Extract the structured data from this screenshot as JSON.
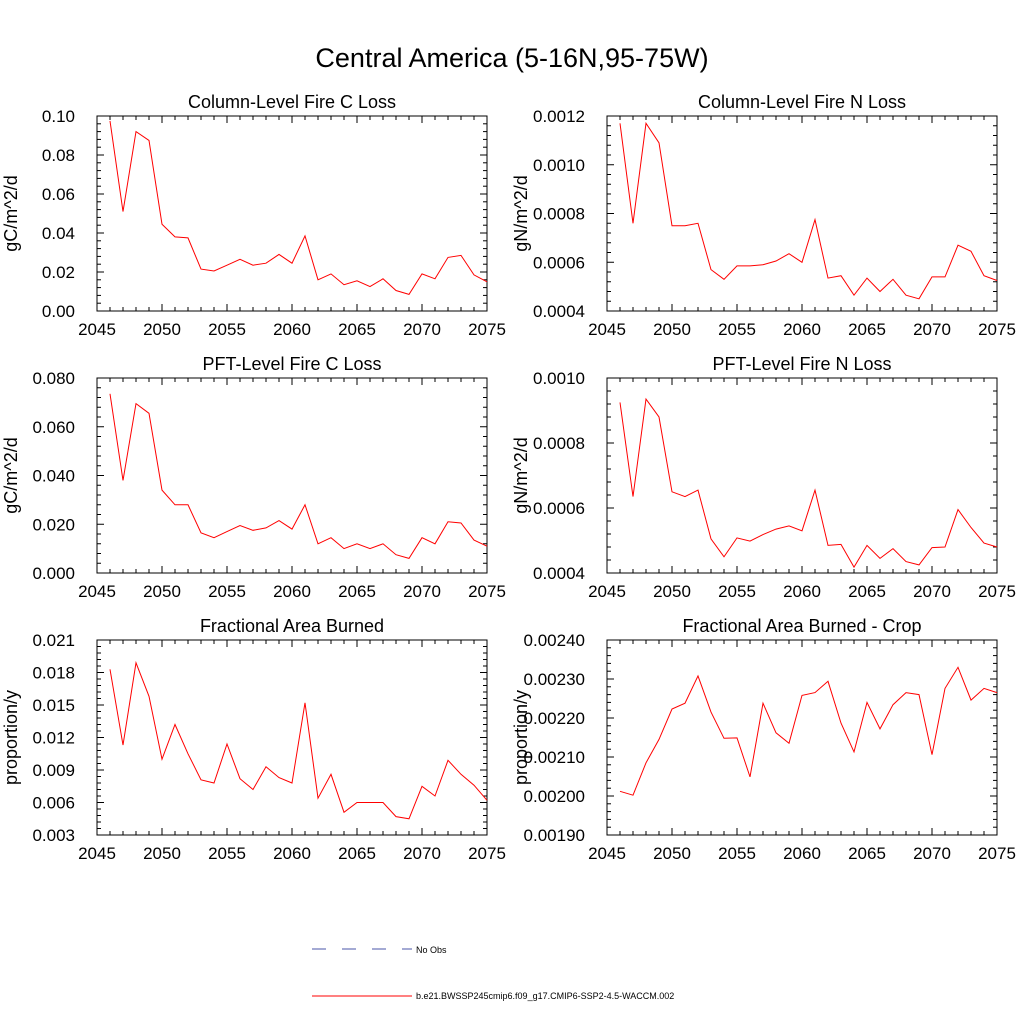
{
  "figure": {
    "title": "Central America (5-16N,95-75W)",
    "legend": [
      {
        "label": "No Obs",
        "color": "#4a55a8",
        "style": "dashed"
      },
      {
        "label": "b.e21.BWSSP245cmip6.f09_g17.CMIP6-SSP2-4.5-WACCM.002",
        "color": "#ff0000",
        "style": "solid"
      }
    ]
  },
  "chart_data": [
    {
      "type": "line",
      "title": "Column-Level Fire C Loss",
      "xlabel": "",
      "ylabel": "gC/m^2/d",
      "xlim": [
        2045,
        2075
      ],
      "ylim": [
        0.0,
        0.1
      ],
      "xticks": [
        "2045",
        "2050",
        "2055",
        "2060",
        "2065",
        "2070",
        "2075"
      ],
      "yticks": [
        "0.00",
        "0.02",
        "0.04",
        "0.06",
        "0.08",
        "0.10"
      ],
      "x": [
        2046,
        2047,
        2048,
        2049,
        2050,
        2051,
        2052,
        2053,
        2054,
        2055,
        2056,
        2057,
        2058,
        2059,
        2060,
        2061,
        2062,
        2063,
        2064,
        2065,
        2066,
        2067,
        2068,
        2069,
        2070,
        2071,
        2072,
        2073,
        2074,
        2075
      ],
      "series": [
        {
          "values": [
            0.0975,
            0.051,
            0.092,
            0.0875,
            0.0445,
            0.038,
            0.0375,
            0.0215,
            0.0205,
            0.0235,
            0.0265,
            0.0235,
            0.0245,
            0.029,
            0.0245,
            0.0385,
            0.016,
            0.019,
            0.0135,
            0.0155,
            0.0125,
            0.0165,
            0.0105,
            0.0085,
            0.019,
            0.0165,
            0.0275,
            0.0285,
            0.0185,
            0.015
          ],
          "color": "#ff0000"
        }
      ]
    },
    {
      "type": "line",
      "title": "Column-Level Fire N Loss",
      "xlabel": "",
      "ylabel": "gN/m^2/d",
      "xlim": [
        2045,
        2075
      ],
      "ylim": [
        0.0004,
        0.0012
      ],
      "xticks": [
        "2045",
        "2050",
        "2055",
        "2060",
        "2065",
        "2070",
        "2075"
      ],
      "yticks": [
        "0.0004",
        "0.0006",
        "0.0008",
        "0.0010",
        "0.0012"
      ],
      "x": [
        2046,
        2047,
        2048,
        2049,
        2050,
        2051,
        2052,
        2053,
        2054,
        2055,
        2056,
        2057,
        2058,
        2059,
        2060,
        2061,
        2062,
        2063,
        2064,
        2065,
        2066,
        2067,
        2068,
        2069,
        2070,
        2071,
        2072,
        2073,
        2074,
        2075
      ],
      "series": [
        {
          "values": [
            0.00117,
            0.00076,
            0.00117,
            0.00109,
            0.00075,
            0.00075,
            0.00076,
            0.00057,
            0.00053,
            0.000585,
            0.000585,
            0.00059,
            0.000605,
            0.000635,
            0.0006,
            0.000775,
            0.000535,
            0.000545,
            0.000465,
            0.000535,
            0.00048,
            0.00053,
            0.000465,
            0.00045,
            0.00054,
            0.00054,
            0.00067,
            0.000645,
            0.000545,
            0.000525
          ],
          "color": "#ff0000"
        }
      ]
    },
    {
      "type": "line",
      "title": "PFT-Level Fire C Loss",
      "xlabel": "",
      "ylabel": "gC/m^2/d",
      "xlim": [
        2045,
        2075
      ],
      "ylim": [
        0.0,
        0.08
      ],
      "xticks": [
        "2045",
        "2050",
        "2055",
        "2060",
        "2065",
        "2070",
        "2075"
      ],
      "yticks": [
        "0.000",
        "0.020",
        "0.040",
        "0.060",
        "0.080"
      ],
      "x": [
        2046,
        2047,
        2048,
        2049,
        2050,
        2051,
        2052,
        2053,
        2054,
        2055,
        2056,
        2057,
        2058,
        2059,
        2060,
        2061,
        2062,
        2063,
        2064,
        2065,
        2066,
        2067,
        2068,
        2069,
        2070,
        2071,
        2072,
        2073,
        2074,
        2075
      ],
      "series": [
        {
          "values": [
            0.0735,
            0.038,
            0.0695,
            0.0655,
            0.034,
            0.028,
            0.028,
            0.0165,
            0.0145,
            0.017,
            0.0195,
            0.0175,
            0.0185,
            0.0215,
            0.018,
            0.028,
            0.012,
            0.0145,
            0.01,
            0.012,
            0.01,
            0.012,
            0.0075,
            0.006,
            0.0145,
            0.012,
            0.021,
            0.0205,
            0.0135,
            0.011
          ],
          "color": "#ff0000"
        }
      ]
    },
    {
      "type": "line",
      "title": "PFT-Level Fire N Loss",
      "xlabel": "",
      "ylabel": "gN/m^2/d",
      "xlim": [
        2045,
        2075
      ],
      "ylim": [
        0.0004,
        0.001
      ],
      "xticks": [
        "2045",
        "2050",
        "2055",
        "2060",
        "2065",
        "2070",
        "2075"
      ],
      "yticks": [
        "0.0004",
        "0.0006",
        "0.0008",
        "0.0010"
      ],
      "x": [
        2046,
        2047,
        2048,
        2049,
        2050,
        2051,
        2052,
        2053,
        2054,
        2055,
        2056,
        2057,
        2058,
        2059,
        2060,
        2061,
        2062,
        2063,
        2064,
        2065,
        2066,
        2067,
        2068,
        2069,
        2070,
        2071,
        2072,
        2073,
        2074,
        2075
      ],
      "series": [
        {
          "values": [
            0.000925,
            0.000635,
            0.000935,
            0.00088,
            0.00065,
            0.000635,
            0.000655,
            0.000505,
            0.00045,
            0.000508,
            0.000498,
            0.000518,
            0.000535,
            0.000545,
            0.00053,
            0.000655,
            0.000485,
            0.000488,
            0.000418,
            0.000485,
            0.000445,
            0.000475,
            0.000435,
            0.000425,
            0.000478,
            0.00048,
            0.000595,
            0.00054,
            0.000492,
            0.00048
          ],
          "color": "#ff0000"
        }
      ]
    },
    {
      "type": "line",
      "title": "Fractional Area Burned",
      "xlabel": "",
      "ylabel": "proportion/y",
      "xlim": [
        2045,
        2075
      ],
      "ylim": [
        0.003,
        0.021
      ],
      "xticks": [
        "2045",
        "2050",
        "2055",
        "2060",
        "2065",
        "2070",
        "2075"
      ],
      "yticks": [
        "0.003",
        "0.006",
        "0.009",
        "0.012",
        "0.015",
        "0.018",
        "0.021"
      ],
      "x": [
        2046,
        2047,
        2048,
        2049,
        2050,
        2051,
        2052,
        2053,
        2054,
        2055,
        2056,
        2057,
        2058,
        2059,
        2060,
        2061,
        2062,
        2063,
        2064,
        2065,
        2066,
        2067,
        2068,
        2069,
        2070,
        2071,
        2072,
        2073,
        2074,
        2075
      ],
      "series": [
        {
          "values": [
            0.0183,
            0.0113,
            0.0189,
            0.0158,
            0.01,
            0.0132,
            0.0105,
            0.0081,
            0.0078,
            0.0114,
            0.0082,
            0.0072,
            0.0093,
            0.0083,
            0.0078,
            0.0152,
            0.0064,
            0.0086,
            0.0051,
            0.006,
            0.006,
            0.006,
            0.0047,
            0.0045,
            0.0075,
            0.0066,
            0.0099,
            0.0086,
            0.0076,
            0.0062
          ],
          "color": "#ff0000"
        }
      ]
    },
    {
      "type": "line",
      "title": "Fractional Area Burned - Crop",
      "xlabel": "",
      "ylabel": "proportion/y",
      "xlim": [
        2045,
        2075
      ],
      "ylim": [
        0.0019,
        0.0024
      ],
      "xticks": [
        "2045",
        "2050",
        "2055",
        "2060",
        "2065",
        "2070",
        "2075"
      ],
      "yticks": [
        "0.00190",
        "0.00200",
        "0.00210",
        "0.00220",
        "0.00230",
        "0.00240"
      ],
      "x": [
        2046,
        2047,
        2048,
        2049,
        2050,
        2051,
        2052,
        2053,
        2054,
        2055,
        2056,
        2057,
        2058,
        2059,
        2060,
        2061,
        2062,
        2063,
        2064,
        2065,
        2066,
        2067,
        2068,
        2069,
        2070,
        2071,
        2072,
        2073,
        2074,
        2075
      ],
      "series": [
        {
          "values": [
            0.002012,
            0.002002,
            0.002085,
            0.002145,
            0.002223,
            0.002238,
            0.002308,
            0.002215,
            0.002148,
            0.002149,
            0.002049,
            0.002238,
            0.002162,
            0.002135,
            0.002258,
            0.002265,
            0.002294,
            0.002187,
            0.002113,
            0.00224,
            0.002172,
            0.002234,
            0.002265,
            0.00226,
            0.002106,
            0.002276,
            0.00233,
            0.002246,
            0.002276,
            0.002265
          ],
          "color": "#ff0000"
        }
      ]
    }
  ]
}
